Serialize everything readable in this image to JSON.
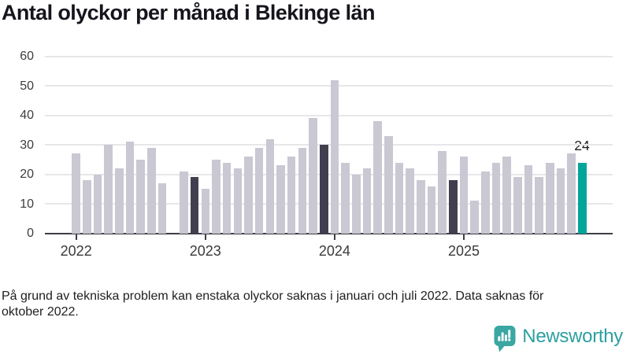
{
  "title": "Antal olyckor per månad i Blekinge län",
  "footnote": "På grund av tekniska problem kan enstaka olyckor saknas i januari och juli 2022. Data saknas för\noktober 2022.",
  "branding": {
    "name": "Newsworthy",
    "icon": "bar-chart-speech-bubble-pin",
    "color": "#2d9fa0"
  },
  "chart_data": {
    "type": "bar",
    "title": "Antal olyckor per månad i Blekinge län",
    "xlabel": "",
    "ylabel": "",
    "ylim": [
      0,
      60
    ],
    "yticks": [
      0,
      10,
      20,
      30,
      40,
      50,
      60
    ],
    "grid": "horizontal",
    "legend": "none",
    "months": [
      "2022-01",
      "2022-02",
      "2022-03",
      "2022-04",
      "2022-05",
      "2022-06",
      "2022-07",
      "2022-08",
      "2022-09",
      "2022-10",
      "2022-11",
      "2022-12",
      "2023-01",
      "2023-02",
      "2023-03",
      "2023-04",
      "2023-05",
      "2023-06",
      "2023-07",
      "2023-08",
      "2023-09",
      "2023-10",
      "2023-11",
      "2023-12",
      "2024-01",
      "2024-02",
      "2024-03",
      "2024-04",
      "2024-05",
      "2024-06",
      "2024-07",
      "2024-08",
      "2024-09",
      "2024-10",
      "2024-11",
      "2024-12",
      "2025-01",
      "2025-02",
      "2025-03",
      "2025-04",
      "2025-05",
      "2025-06",
      "2025-07",
      "2025-08",
      "2025-09",
      "2025-10",
      "2025-11",
      "2025-12"
    ],
    "values": [
      27,
      18,
      20,
      30,
      22,
      31,
      25,
      29,
      17,
      null,
      21,
      19,
      15,
      25,
      24,
      22,
      26,
      29,
      32,
      23,
      26,
      29,
      39,
      30,
      52,
      24,
      20,
      22,
      38,
      33,
      24,
      22,
      18,
      16,
      28,
      18,
      26,
      11,
      21,
      24,
      26,
      19,
      23,
      19,
      24,
      22,
      27,
      24
    ],
    "missing_month_indices": [
      9
    ],
    "dark_month_indices": [
      11,
      23,
      35
    ],
    "latest_month_index": 47,
    "year_ticks": [
      {
        "label": "2022",
        "month_index": 0
      },
      {
        "label": "2023",
        "month_index": 12
      },
      {
        "label": "2024",
        "month_index": 24
      },
      {
        "label": "2025",
        "month_index": 36
      }
    ],
    "annotation": {
      "text": "24",
      "month_index": 47
    },
    "colors": {
      "default_bar": "#c9c8d3",
      "december_bar": "#413f4f",
      "latest_bar": "#00a59b",
      "gridline": "#e7e7ea",
      "axis_line": "#3e3e46",
      "tick_text": "#3d3d3d"
    }
  }
}
